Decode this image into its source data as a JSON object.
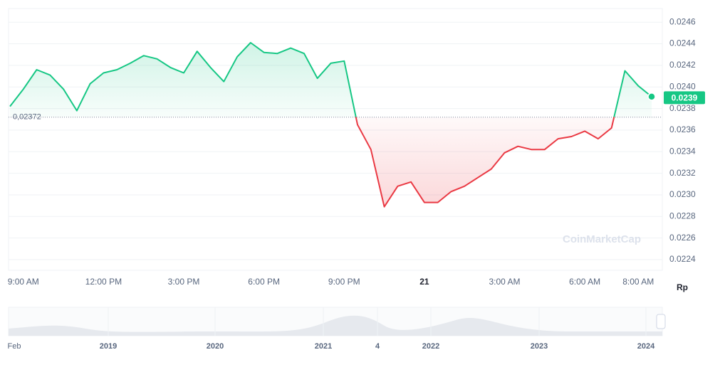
{
  "chart_data": {
    "type": "line",
    "categories": [
      null,
      "9:00 AM",
      null,
      null,
      null,
      null,
      null,
      "12:00 PM",
      null,
      null,
      null,
      null,
      null,
      "3:00 PM",
      null,
      null,
      null,
      null,
      null,
      "6:00 PM",
      null,
      null,
      null,
      null,
      null,
      "9:00 PM",
      null,
      null,
      null,
      null,
      null,
      "21",
      null,
      null,
      null,
      null,
      null,
      "3:00 AM",
      null,
      null,
      null,
      null,
      null,
      "6:00 AM",
      null,
      null,
      null,
      "8:00 AM",
      null
    ],
    "values": [
      0.02382,
      0.02398,
      0.02416,
      0.02411,
      0.02398,
      0.02378,
      0.02403,
      0.02413,
      0.02416,
      0.02422,
      0.02429,
      0.02426,
      0.02418,
      0.02413,
      0.02433,
      0.02418,
      0.02405,
      0.02428,
      0.02441,
      0.02432,
      0.02431,
      0.02436,
      0.02431,
      0.02408,
      0.02422,
      0.02424,
      0.02365,
      0.02342,
      0.02289,
      0.02308,
      0.02312,
      0.02293,
      0.02293,
      0.02303,
      0.02308,
      0.02316,
      0.02324,
      0.02339,
      0.02345,
      0.02342,
      0.02342,
      0.02352,
      0.02354,
      0.02359,
      0.02352,
      0.02362,
      0.02415,
      0.02401,
      0.02391
    ],
    "color_above": "#16c784",
    "color_below": "#ea3943",
    "reference": {
      "value": 0.02372,
      "label": "0,02372"
    },
    "last_price": {
      "value": 0.0239,
      "label": "0.0239"
    },
    "ylim": [
      0.0224,
      0.02472
    ],
    "yticks": [
      0.0224,
      0.0226,
      0.0228,
      {
        "value": 0.023,
        "label": "0.0230"
      },
      0.0232,
      0.0234,
      0.0236,
      0.0238,
      {
        "value": 0.024,
        "label": "0.0240"
      },
      0.0242,
      0.0244,
      0.0246
    ],
    "grid": true,
    "y_unit": "Rp",
    "watermark": "CoinMarketCap",
    "navigator_labels": [
      "Feb",
      "2019",
      "2020",
      "2021",
      "4",
      "2022",
      "2023",
      "2024"
    ]
  }
}
